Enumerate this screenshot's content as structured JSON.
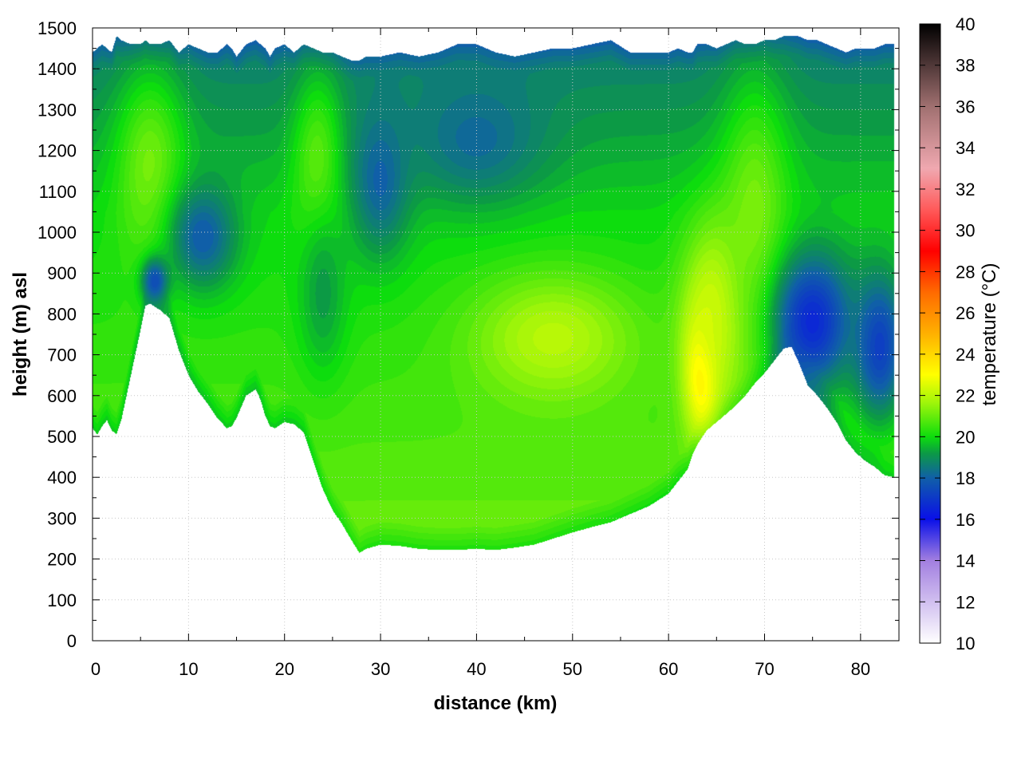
{
  "chart_data": {
    "type": "heatmap",
    "title": "",
    "xlabel": "distance (km)",
    "ylabel": "height (m) asl",
    "colorbar_label": "temperature (°C)",
    "xlim": [
      0,
      84
    ],
    "ylim": [
      0,
      1500
    ],
    "clim": [
      10,
      40
    ],
    "grid": true,
    "x_ticks": [
      0,
      10,
      20,
      30,
      40,
      50,
      60,
      70,
      80
    ],
    "y_ticks": [
      0,
      100,
      200,
      300,
      400,
      500,
      600,
      700,
      800,
      900,
      1000,
      1100,
      1200,
      1300,
      1400,
      1500
    ],
    "colorbar_ticks": [
      10,
      12,
      14,
      16,
      18,
      20,
      22,
      24,
      26,
      28,
      30,
      32,
      34,
      36,
      38,
      40
    ],
    "colormap": [
      {
        "t": 10,
        "color": "#ffffff"
      },
      {
        "t": 14,
        "color": "#a27fe0"
      },
      {
        "t": 16,
        "color": "#0a10e8"
      },
      {
        "t": 18,
        "color": "#105fa8"
      },
      {
        "t": 19.2,
        "color": "#0c9a45"
      },
      {
        "t": 20,
        "color": "#0ddd0d"
      },
      {
        "t": 21.6,
        "color": "#9cf50a"
      },
      {
        "t": 23,
        "color": "#ffff00"
      },
      {
        "t": 25,
        "color": "#ffb000"
      },
      {
        "t": 27,
        "color": "#ff6a00"
      },
      {
        "t": 29,
        "color": "#ff0000"
      },
      {
        "t": 31,
        "color": "#ff5a5a"
      },
      {
        "t": 33,
        "color": "#f0a8b0"
      },
      {
        "t": 36,
        "color": "#a07070"
      },
      {
        "t": 40,
        "color": "#000000"
      }
    ],
    "ground_profile": {
      "distance_km": [
        0,
        0.5,
        1,
        1.5,
        2,
        2.5,
        3,
        4,
        5,
        5.5,
        6,
        7,
        8,
        9,
        10,
        11,
        12,
        13,
        14,
        14.5,
        15,
        16,
        17,
        17.5,
        18,
        18.5,
        19,
        20,
        21,
        22,
        23,
        24,
        25,
        26,
        27,
        27.8,
        28.5,
        30,
        32,
        34,
        36,
        38,
        40,
        42,
        44,
        46,
        48,
        50,
        52,
        54,
        56,
        58,
        60,
        61,
        62,
        62.5,
        63,
        64,
        65,
        66,
        67,
        68,
        69,
        70,
        71,
        72,
        72.8,
        73.5,
        74.5,
        75.5,
        76.5,
        77.5,
        78.5,
        79.5,
        80.5,
        81.5,
        82.5,
        83.5
      ],
      "height_m": [
        520,
        505,
        525,
        540,
        515,
        505,
        540,
        650,
        760,
        820,
        825,
        810,
        790,
        710,
        650,
        610,
        580,
        545,
        520,
        525,
        545,
        600,
        615,
        590,
        550,
        525,
        520,
        535,
        530,
        510,
        440,
        370,
        320,
        285,
        245,
        215,
        225,
        235,
        232,
        225,
        222,
        222,
        225,
        222,
        228,
        235,
        250,
        265,
        278,
        290,
        310,
        330,
        360,
        390,
        420,
        455,
        480,
        515,
        535,
        555,
        575,
        600,
        630,
        655,
        685,
        715,
        720,
        685,
        625,
        600,
        570,
        535,
        490,
        460,
        440,
        425,
        405,
        400
      ],
      "top_height_m": [
        1440,
        1450,
        1460,
        1450,
        1440,
        1480,
        1470,
        1460,
        1460,
        1470,
        1460,
        1460,
        1470,
        1440,
        1460,
        1450,
        1440,
        1440,
        1460,
        1450,
        1430,
        1460,
        1470,
        1460,
        1450,
        1430,
        1450,
        1460,
        1440,
        1460,
        1450,
        1440,
        1440,
        1430,
        1420,
        1420,
        1430,
        1430,
        1440,
        1430,
        1440,
        1460,
        1460,
        1440,
        1430,
        1440,
        1450,
        1450,
        1460,
        1470,
        1440,
        1440,
        1440,
        1450,
        1440,
        1440,
        1460,
        1460,
        1450,
        1460,
        1470,
        1460,
        1460,
        1470,
        1470,
        1480,
        1480,
        1480,
        1470,
        1470,
        1460,
        1450,
        1440,
        1450,
        1450,
        1450,
        1460,
        1460
      ]
    },
    "temperature_features": [
      {
        "distance_km": 6,
        "height_m": 1150,
        "temperature_c": 21.2,
        "sx_km": 2.5,
        "sy_m": 170
      },
      {
        "distance_km": 11.5,
        "height_m": 990,
        "temperature_c": 17.9,
        "sx_km": 2.5,
        "sy_m": 90
      },
      {
        "distance_km": 23.5,
        "height_m": 1150,
        "temperature_c": 21.0,
        "sx_km": 1.8,
        "sy_m": 160
      },
      {
        "distance_km": 24,
        "height_m": 850,
        "temperature_c": 19.2,
        "sx_km": 1.8,
        "sy_m": 140
      },
      {
        "distance_km": 30,
        "height_m": 1130,
        "temperature_c": 18.0,
        "sx_km": 2.2,
        "sy_m": 130
      },
      {
        "distance_km": 40,
        "height_m": 1230,
        "temperature_c": 18.2,
        "sx_km": 5.0,
        "sy_m": 110
      },
      {
        "distance_km": 48,
        "height_m": 740,
        "temperature_c": 22.0,
        "sx_km": 6.0,
        "sy_m": 110
      },
      {
        "distance_km": 63.5,
        "height_m": 660,
        "temperature_c": 24.0,
        "sx_km": 1.3,
        "sy_m": 110
      },
      {
        "distance_km": 65,
        "height_m": 800,
        "temperature_c": 22.5,
        "sx_km": 2.5,
        "sy_m": 160
      },
      {
        "distance_km": 69,
        "height_m": 1000,
        "temperature_c": 21.3,
        "sx_km": 2.5,
        "sy_m": 250
      },
      {
        "distance_km": 75,
        "height_m": 780,
        "temperature_c": 16.6,
        "sx_km": 3.0,
        "sy_m": 120
      },
      {
        "distance_km": 82,
        "height_m": 720,
        "temperature_c": 17.2,
        "sx_km": 2.0,
        "sy_m": 130
      },
      {
        "distance_km": 6.5,
        "height_m": 880,
        "temperature_c": 17.5,
        "sx_km": 1.0,
        "sy_m": 40
      }
    ]
  }
}
